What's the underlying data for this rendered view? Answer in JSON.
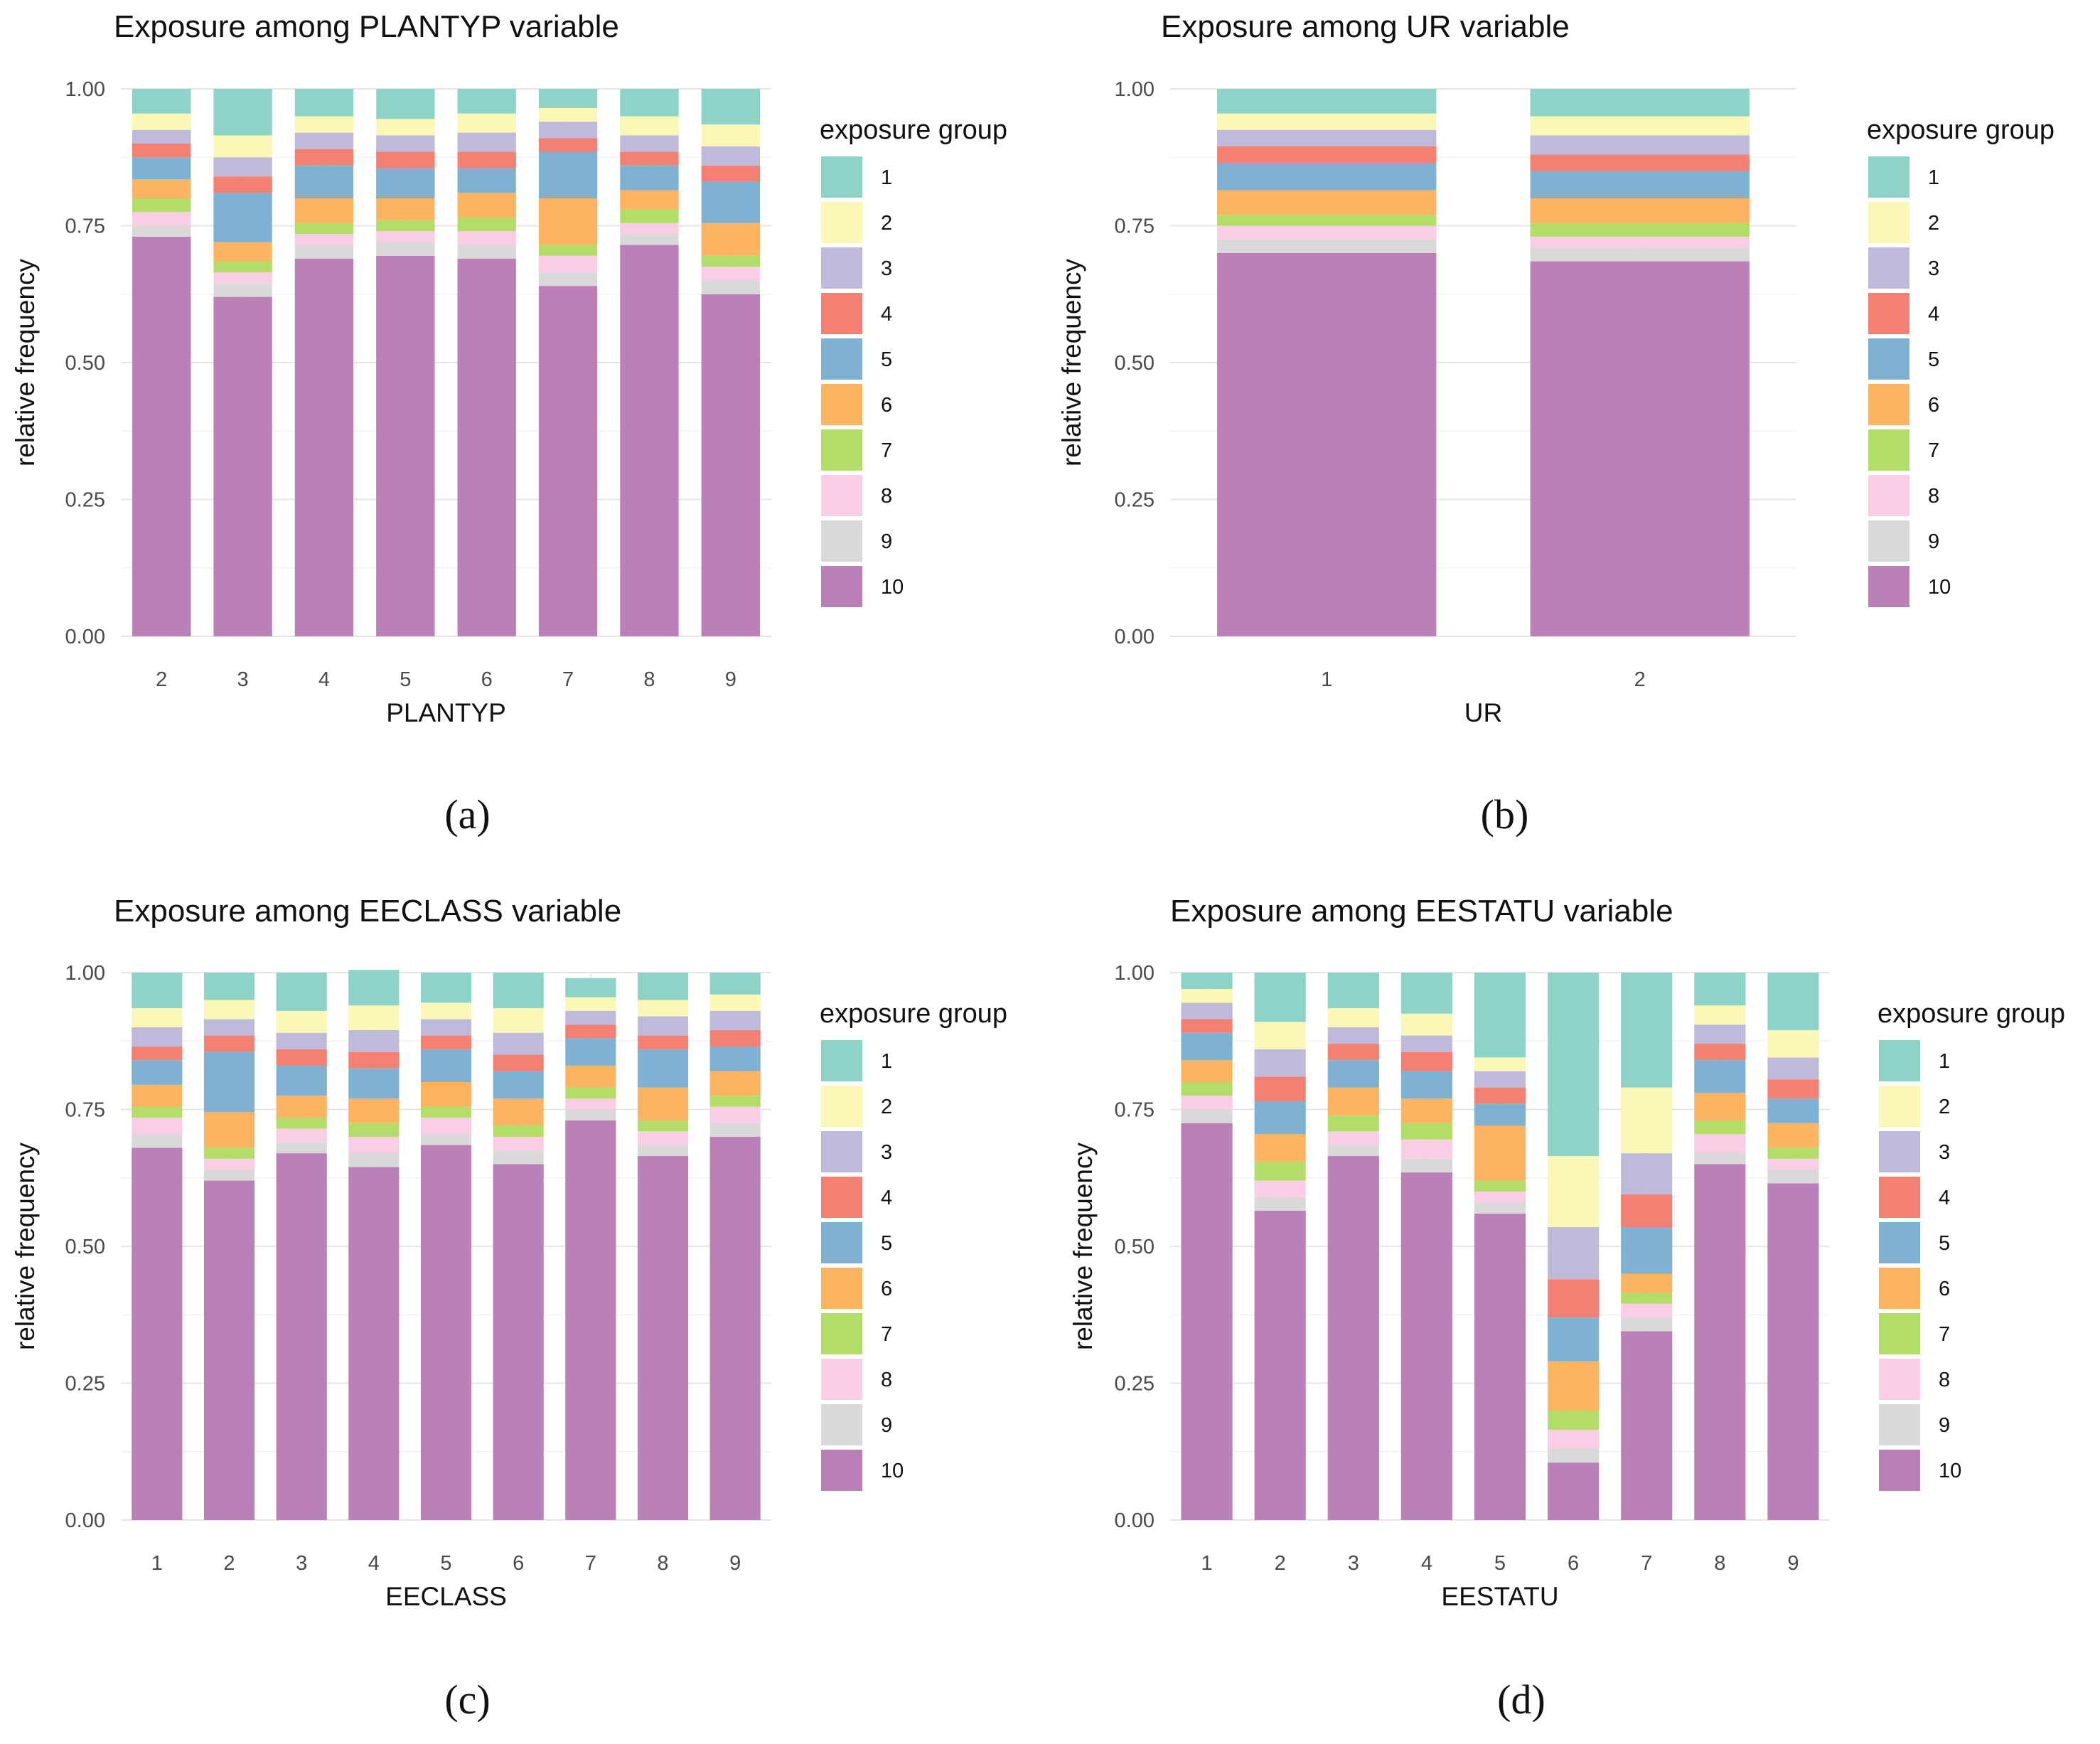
{
  "legend": {
    "title": "exposure group",
    "groups": [
      "1",
      "2",
      "3",
      "4",
      "5",
      "6",
      "7",
      "8",
      "9",
      "10"
    ]
  },
  "colors": {
    "1": "#8dd3c7",
    "2": "#fbf7b6",
    "3": "#bebada",
    "4": "#f47f73",
    "5": "#7fb1d3",
    "6": "#fcb462",
    "7": "#b3dd69",
    "8": "#f9cde4",
    "9": "#d9d9d9",
    "10": "#bb80b8"
  },
  "chart_data": [
    {
      "type": "bar",
      "stacked": true,
      "title": "Exposure among PLANTYP variable",
      "xlabel": "PLANTYP",
      "ylabel": "relative frequency",
      "ylim": [
        0,
        1
      ],
      "yticks": [
        "0.00",
        "0.25",
        "0.50",
        "0.75",
        "1.00"
      ],
      "caption": "(a)",
      "categories": [
        "2",
        "3",
        "4",
        "5",
        "6",
        "7",
        "8",
        "9"
      ],
      "stack_order_bottom_to_top": [
        "10",
        "9",
        "8",
        "7",
        "6",
        "5",
        "4",
        "3",
        "2",
        "1"
      ],
      "series": [
        {
          "name": "10",
          "values": [
            0.73,
            0.62,
            0.69,
            0.695,
            0.69,
            0.64,
            0.715,
            0.625
          ]
        },
        {
          "name": "9",
          "values": [
            0.02,
            0.025,
            0.025,
            0.025,
            0.025,
            0.025,
            0.02,
            0.025
          ]
        },
        {
          "name": "8",
          "values": [
            0.025,
            0.02,
            0.02,
            0.02,
            0.025,
            0.03,
            0.02,
            0.025
          ]
        },
        {
          "name": "7",
          "values": [
            0.025,
            0.02,
            0.02,
            0.02,
            0.025,
            0.02,
            0.025,
            0.02
          ]
        },
        {
          "name": "6",
          "values": [
            0.035,
            0.035,
            0.045,
            0.04,
            0.045,
            0.085,
            0.035,
            0.06
          ]
        },
        {
          "name": "5",
          "values": [
            0.04,
            0.09,
            0.06,
            0.055,
            0.045,
            0.085,
            0.045,
            0.075
          ]
        },
        {
          "name": "4",
          "values": [
            0.025,
            0.03,
            0.03,
            0.03,
            0.03,
            0.025,
            0.025,
            0.03
          ]
        },
        {
          "name": "3",
          "values": [
            0.025,
            0.035,
            0.03,
            0.03,
            0.035,
            0.03,
            0.03,
            0.035
          ]
        },
        {
          "name": "2",
          "values": [
            0.03,
            0.04,
            0.03,
            0.03,
            0.035,
            0.025,
            0.035,
            0.04
          ]
        },
        {
          "name": "1",
          "values": [
            0.045,
            0.085,
            0.05,
            0.055,
            0.045,
            0.035,
            0.05,
            0.065
          ]
        }
      ]
    },
    {
      "type": "bar",
      "stacked": true,
      "title": "Exposure among UR variable",
      "xlabel": "UR",
      "ylabel": "relative frequency",
      "ylim": [
        0,
        1
      ],
      "yticks": [
        "0.00",
        "0.25",
        "0.50",
        "0.75",
        "1.00"
      ],
      "caption": "(b)",
      "categories": [
        "1",
        "2"
      ],
      "stack_order_bottom_to_top": [
        "10",
        "9",
        "8",
        "7",
        "6",
        "5",
        "4",
        "3",
        "2",
        "1"
      ],
      "series": [
        {
          "name": "10",
          "values": [
            0.7,
            0.685
          ]
        },
        {
          "name": "9",
          "values": [
            0.025,
            0.025
          ]
        },
        {
          "name": "8",
          "values": [
            0.025,
            0.02
          ]
        },
        {
          "name": "7",
          "values": [
            0.02,
            0.025
          ]
        },
        {
          "name": "6",
          "values": [
            0.045,
            0.045
          ]
        },
        {
          "name": "5",
          "values": [
            0.05,
            0.05
          ]
        },
        {
          "name": "4",
          "values": [
            0.03,
            0.03
          ]
        },
        {
          "name": "3",
          "values": [
            0.03,
            0.035
          ]
        },
        {
          "name": "2",
          "values": [
            0.03,
            0.035
          ]
        },
        {
          "name": "1",
          "values": [
            0.045,
            0.05
          ]
        }
      ]
    },
    {
      "type": "bar",
      "stacked": true,
      "title": "Exposure among EECLASS variable",
      "xlabel": "EECLASS",
      "ylabel": "relative frequency",
      "ylim": [
        0,
        1
      ],
      "yticks": [
        "0.00",
        "0.25",
        "0.50",
        "0.75",
        "1.00"
      ],
      "caption": "(c)",
      "categories": [
        "1",
        "2",
        "3",
        "4",
        "5",
        "6",
        "7",
        "8",
        "9"
      ],
      "stack_order_bottom_to_top": [
        "10",
        "9",
        "8",
        "7",
        "6",
        "5",
        "4",
        "3",
        "2",
        "1"
      ],
      "series": [
        {
          "name": "10",
          "values": [
            0.68,
            0.62,
            0.67,
            0.645,
            0.685,
            0.65,
            0.73,
            0.665,
            0.7
          ]
        },
        {
          "name": "9",
          "values": [
            0.025,
            0.02,
            0.02,
            0.025,
            0.02,
            0.025,
            0.02,
            0.02,
            0.025
          ]
        },
        {
          "name": "8",
          "values": [
            0.03,
            0.02,
            0.025,
            0.03,
            0.03,
            0.025,
            0.02,
            0.025,
            0.03
          ]
        },
        {
          "name": "7",
          "values": [
            0.02,
            0.02,
            0.02,
            0.025,
            0.02,
            0.02,
            0.02,
            0.02,
            0.02
          ]
        },
        {
          "name": "6",
          "values": [
            0.04,
            0.065,
            0.04,
            0.045,
            0.045,
            0.05,
            0.04,
            0.06,
            0.045
          ]
        },
        {
          "name": "5",
          "values": [
            0.045,
            0.11,
            0.055,
            0.055,
            0.06,
            0.05,
            0.05,
            0.07,
            0.045
          ]
        },
        {
          "name": "4",
          "values": [
            0.025,
            0.03,
            0.03,
            0.03,
            0.025,
            0.03,
            0.025,
            0.025,
            0.03
          ]
        },
        {
          "name": "3",
          "values": [
            0.035,
            0.03,
            0.03,
            0.04,
            0.03,
            0.04,
            0.025,
            0.035,
            0.035
          ]
        },
        {
          "name": "2",
          "values": [
            0.035,
            0.035,
            0.04,
            0.045,
            0.03,
            0.045,
            0.025,
            0.03,
            0.03
          ]
        },
        {
          "name": "1",
          "values": [
            0.065,
            0.05,
            0.07,
            0.065,
            0.055,
            0.065,
            0.035,
            0.05,
            0.04
          ]
        }
      ]
    },
    {
      "type": "bar",
      "stacked": true,
      "title": "Exposure among EESTATU variable",
      "xlabel": "EESTATU",
      "ylabel": "relative frequency",
      "ylim": [
        0,
        1
      ],
      "yticks": [
        "0.00",
        "0.25",
        "0.50",
        "0.75",
        "1.00"
      ],
      "caption": "(d)",
      "categories": [
        "1",
        "2",
        "3",
        "4",
        "5",
        "6",
        "7",
        "8",
        "9"
      ],
      "stack_order_bottom_to_top": [
        "10",
        "9",
        "8",
        "7",
        "6",
        "5",
        "4",
        "3",
        "2",
        "1"
      ],
      "series": [
        {
          "name": "10",
          "values": [
            0.725,
            0.565,
            0.665,
            0.635,
            0.56,
            0.105,
            0.345,
            0.65,
            0.615
          ]
        },
        {
          "name": "9",
          "values": [
            0.025,
            0.025,
            0.02,
            0.025,
            0.02,
            0.025,
            0.025,
            0.02,
            0.025
          ]
        },
        {
          "name": "8",
          "values": [
            0.025,
            0.03,
            0.025,
            0.035,
            0.02,
            0.035,
            0.025,
            0.035,
            0.02
          ]
        },
        {
          "name": "7",
          "values": [
            0.025,
            0.035,
            0.03,
            0.03,
            0.02,
            0.035,
            0.02,
            0.025,
            0.02
          ]
        },
        {
          "name": "6",
          "values": [
            0.04,
            0.05,
            0.05,
            0.045,
            0.1,
            0.09,
            0.035,
            0.05,
            0.045
          ]
        },
        {
          "name": "5",
          "values": [
            0.05,
            0.06,
            0.05,
            0.05,
            0.04,
            0.08,
            0.085,
            0.06,
            0.045
          ]
        },
        {
          "name": "4",
          "values": [
            0.025,
            0.045,
            0.03,
            0.035,
            0.03,
            0.07,
            0.06,
            0.03,
            0.035
          ]
        },
        {
          "name": "3",
          "values": [
            0.03,
            0.05,
            0.03,
            0.03,
            0.03,
            0.095,
            0.075,
            0.035,
            0.04
          ]
        },
        {
          "name": "2",
          "values": [
            0.025,
            0.05,
            0.035,
            0.04,
            0.025,
            0.13,
            0.12,
            0.035,
            0.05
          ]
        },
        {
          "name": "1",
          "values": [
            0.03,
            0.09,
            0.065,
            0.075,
            0.155,
            0.335,
            0.21,
            0.06,
            0.105
          ]
        }
      ]
    }
  ]
}
